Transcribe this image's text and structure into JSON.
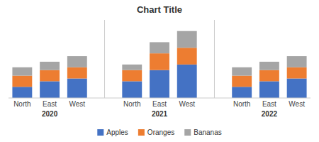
{
  "chart_data": {
    "type": "bar",
    "title": "Chart Title",
    "stacked": true,
    "categories": [
      "North",
      "East",
      "West",
      "North",
      "East",
      "West",
      "North",
      "East",
      "West"
    ],
    "groups": [
      "2020",
      "2021",
      "2022"
    ],
    "series": [
      {
        "name": "Apples",
        "color": "#4472C4",
        "values": [
          2,
          3,
          3.5,
          3,
          5,
          6,
          2,
          3,
          3.5
        ]
      },
      {
        "name": "Oranges",
        "color": "#ED7D31",
        "values": [
          2,
          2,
          2,
          2,
          3,
          3,
          2,
          2,
          2
        ]
      },
      {
        "name": "Bananas",
        "color": "#A5A5A5",
        "values": [
          1.5,
          1.5,
          2,
          1,
          2,
          3,
          1.5,
          1.5,
          2
        ]
      }
    ],
    "ylim": [
      0,
      14
    ],
    "tick_labels": "x",
    "grid": false,
    "legend": "bottom"
  }
}
